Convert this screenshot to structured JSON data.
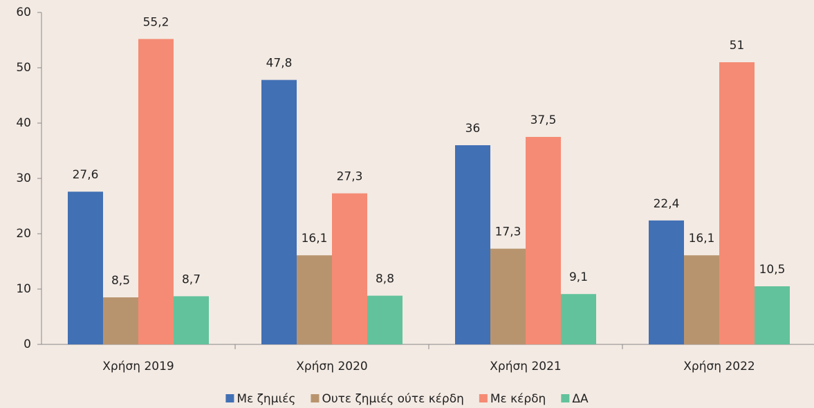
{
  "chart_data": {
    "type": "bar",
    "categories": [
      "Χρήση 2019",
      "Χρήση 2020",
      "Χρήση 2021",
      "Χρήση 2022"
    ],
    "series": [
      {
        "name": "Με ζημιές",
        "color": "#4170b4",
        "values": [
          27.6,
          47.8,
          36,
          22.4
        ],
        "value_labels": [
          "27,6",
          "47,8",
          "36",
          "22,4"
        ]
      },
      {
        "name": "Ουτε ζημιές ούτε κέρδη",
        "color": "#b8946e",
        "values": [
          8.5,
          16.1,
          17.3,
          16.1
        ],
        "value_labels": [
          "8,5",
          "16,1",
          "17,3",
          "16,1"
        ]
      },
      {
        "name": "Με κέρδη",
        "color": "#f58b74",
        "values": [
          55.2,
          27.3,
          37.5,
          51
        ],
        "value_labels": [
          "55,2",
          "27,3",
          "37,5",
          "51"
        ]
      },
      {
        "name": "ΔΑ",
        "color": "#62c29c",
        "values": [
          8.7,
          8.8,
          9.1,
          10.5
        ],
        "value_labels": [
          "8,7",
          "8,8",
          "9,1",
          "10,5"
        ]
      }
    ],
    "ylim": [
      0,
      60
    ],
    "yticks": [
      0,
      10,
      20,
      30,
      40,
      50,
      60
    ],
    "legend": "bottom"
  }
}
